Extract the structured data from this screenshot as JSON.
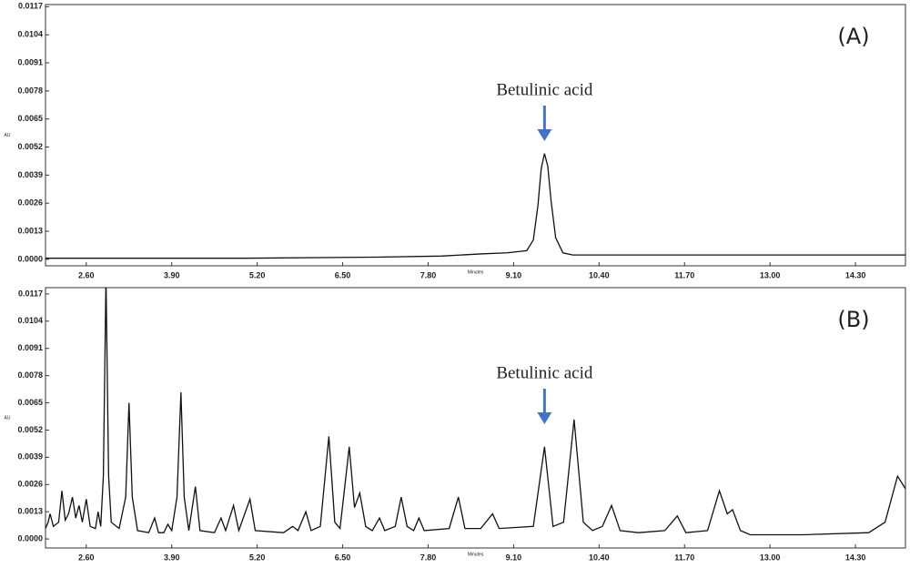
{
  "chart_data": [
    {
      "type": "line",
      "panel_label": "(A)",
      "ylabel": "AU",
      "xlabel": "Minutes",
      "annotation": {
        "text": "Betulinic acid",
        "x": 9.57
      },
      "xlim": [
        1.98,
        15.06
      ],
      "ylim": [
        -0.0003,
        0.0118
      ],
      "xticks": [
        {
          "value": 2.6,
          "label": "2.60"
        },
        {
          "value": 3.9,
          "label": "3.90"
        },
        {
          "value": 5.2,
          "label": "5.20"
        },
        {
          "value": 6.5,
          "label": "6.50"
        },
        {
          "value": 7.8,
          "label": "7.80"
        },
        {
          "value": 9.1,
          "label": "9.10"
        },
        {
          "value": 10.4,
          "label": "10.40"
        },
        {
          "value": 11.7,
          "label": "11.70"
        },
        {
          "value": 13,
          "label": "13.00"
        },
        {
          "value": 14.3,
          "label": "14.30"
        }
      ],
      "yticks": [
        {
          "value": 0,
          "label": "0.0000"
        },
        0.0013,
        0.0026,
        0.0039,
        0.0052,
        0.0065,
        0.0078,
        0.0091,
        0.0104,
        0.0117
      ],
      "series": [
        {
          "color": "#111111",
          "x": [
            1.98,
            3.0,
            5.0,
            7.0,
            8.0,
            8.6,
            9.0,
            9.3,
            9.4,
            9.47,
            9.52,
            9.57,
            9.62,
            9.67,
            9.74,
            9.85,
            10.0,
            11.0,
            13.0,
            15.06
          ],
          "values": [
            5e-05,
            5e-05,
            5e-05,
            0.0001,
            0.00015,
            0.00025,
            0.0003,
            0.0004,
            0.0009,
            0.0025,
            0.0042,
            0.0049,
            0.0043,
            0.0027,
            0.001,
            0.0003,
            0.0002,
            0.0002,
            0.0002,
            0.0002
          ]
        }
      ]
    },
    {
      "type": "line",
      "panel_label": "(B)",
      "ylabel": "AU",
      "xlabel": "Minutes",
      "annotation": {
        "text": "Betulinic acid",
        "x": 9.57
      },
      "xlim": [
        1.98,
        15.06
      ],
      "ylim": [
        -0.00043,
        0.012
      ],
      "xticks": [
        {
          "value": 2.6,
          "label": "2.60"
        },
        {
          "value": 3.9,
          "label": "3.90"
        },
        {
          "value": 5.2,
          "label": "5.20"
        },
        {
          "value": 6.5,
          "label": "6.50"
        },
        {
          "value": 7.8,
          "label": "7.80"
        },
        {
          "value": 9.1,
          "label": "9.10"
        },
        {
          "value": 10.4,
          "label": "10.40"
        },
        {
          "value": 11.7,
          "label": "11.70"
        },
        {
          "value": 13,
          "label": "13.00"
        },
        {
          "value": 14.3,
          "label": "14.30"
        }
      ],
      "yticks": [
        {
          "value": 0,
          "label": "0.0000"
        },
        0.0013,
        0.0026,
        0.0039,
        0.0052,
        0.0065,
        0.0078,
        0.0091,
        0.0104,
        0.0117
      ],
      "series": [
        {
          "color": "#111111",
          "x": [
            1.98,
            2.02,
            2.05,
            2.1,
            2.18,
            2.23,
            2.28,
            2.33,
            2.39,
            2.44,
            2.49,
            2.54,
            2.6,
            2.66,
            2.74,
            2.78,
            2.82,
            2.86,
            2.9,
            2.94,
            2.98,
            3.1,
            3.2,
            3.25,
            3.3,
            3.38,
            3.55,
            3.64,
            3.7,
            3.78,
            3.84,
            3.9,
            3.98,
            4.04,
            4.09,
            4.16,
            4.26,
            4.33,
            4.55,
            4.65,
            4.72,
            4.84,
            4.92,
            5.09,
            5.17,
            5.6,
            5.74,
            5.82,
            5.94,
            6.02,
            6.16,
            6.29,
            6.38,
            6.46,
            6.6,
            6.68,
            6.76,
            6.85,
            6.95,
            7.06,
            7.14,
            7.3,
            7.39,
            7.48,
            7.58,
            7.66,
            7.74,
            8.12,
            8.26,
            8.36,
            8.6,
            8.78,
            8.88,
            9.4,
            9.57,
            9.7,
            9.86,
            10.02,
            10.16,
            10.3,
            10.45,
            10.59,
            10.72,
            11.0,
            11.4,
            11.59,
            11.72,
            12.05,
            12.23,
            12.35,
            12.43,
            12.55,
            12.7,
            13.5,
            14.5,
            14.75,
            14.94,
            15.06
          ],
          "values": [
            0.0005,
            0.0008,
            0.0012,
            0.0006,
            0.0008,
            0.0023,
            0.0009,
            0.0012,
            0.002,
            0.001,
            0.0016,
            0.0008,
            0.0019,
            0.0006,
            0.0005,
            0.0013,
            0.0006,
            0.003,
            0.0125,
            0.003,
            0.0008,
            0.0005,
            0.002,
            0.0065,
            0.002,
            0.0004,
            0.0003,
            0.001,
            0.0003,
            0.0003,
            0.0007,
            0.0004,
            0.002,
            0.007,
            0.002,
            0.0004,
            0.0025,
            0.0004,
            0.0003,
            0.001,
            0.0004,
            0.0016,
            0.0004,
            0.0019,
            0.0004,
            0.0003,
            0.0006,
            0.0004,
            0.0013,
            0.0004,
            0.0006,
            0.0049,
            0.0008,
            0.0005,
            0.0044,
            0.0015,
            0.0022,
            0.0006,
            0.0004,
            0.001,
            0.0004,
            0.0006,
            0.002,
            0.0006,
            0.0004,
            0.001,
            0.0004,
            0.0005,
            0.002,
            0.0005,
            0.0005,
            0.0012,
            0.0005,
            0.0006,
            0.0044,
            0.0006,
            0.0008,
            0.0057,
            0.0008,
            0.0004,
            0.0006,
            0.0016,
            0.0004,
            0.0003,
            0.0004,
            0.0011,
            0.0003,
            0.0004,
            0.0023,
            0.0012,
            0.0014,
            0.0004,
            0.0002,
            0.0002,
            0.0003,
            0.0008,
            0.003,
            0.0024
          ]
        }
      ]
    }
  ]
}
